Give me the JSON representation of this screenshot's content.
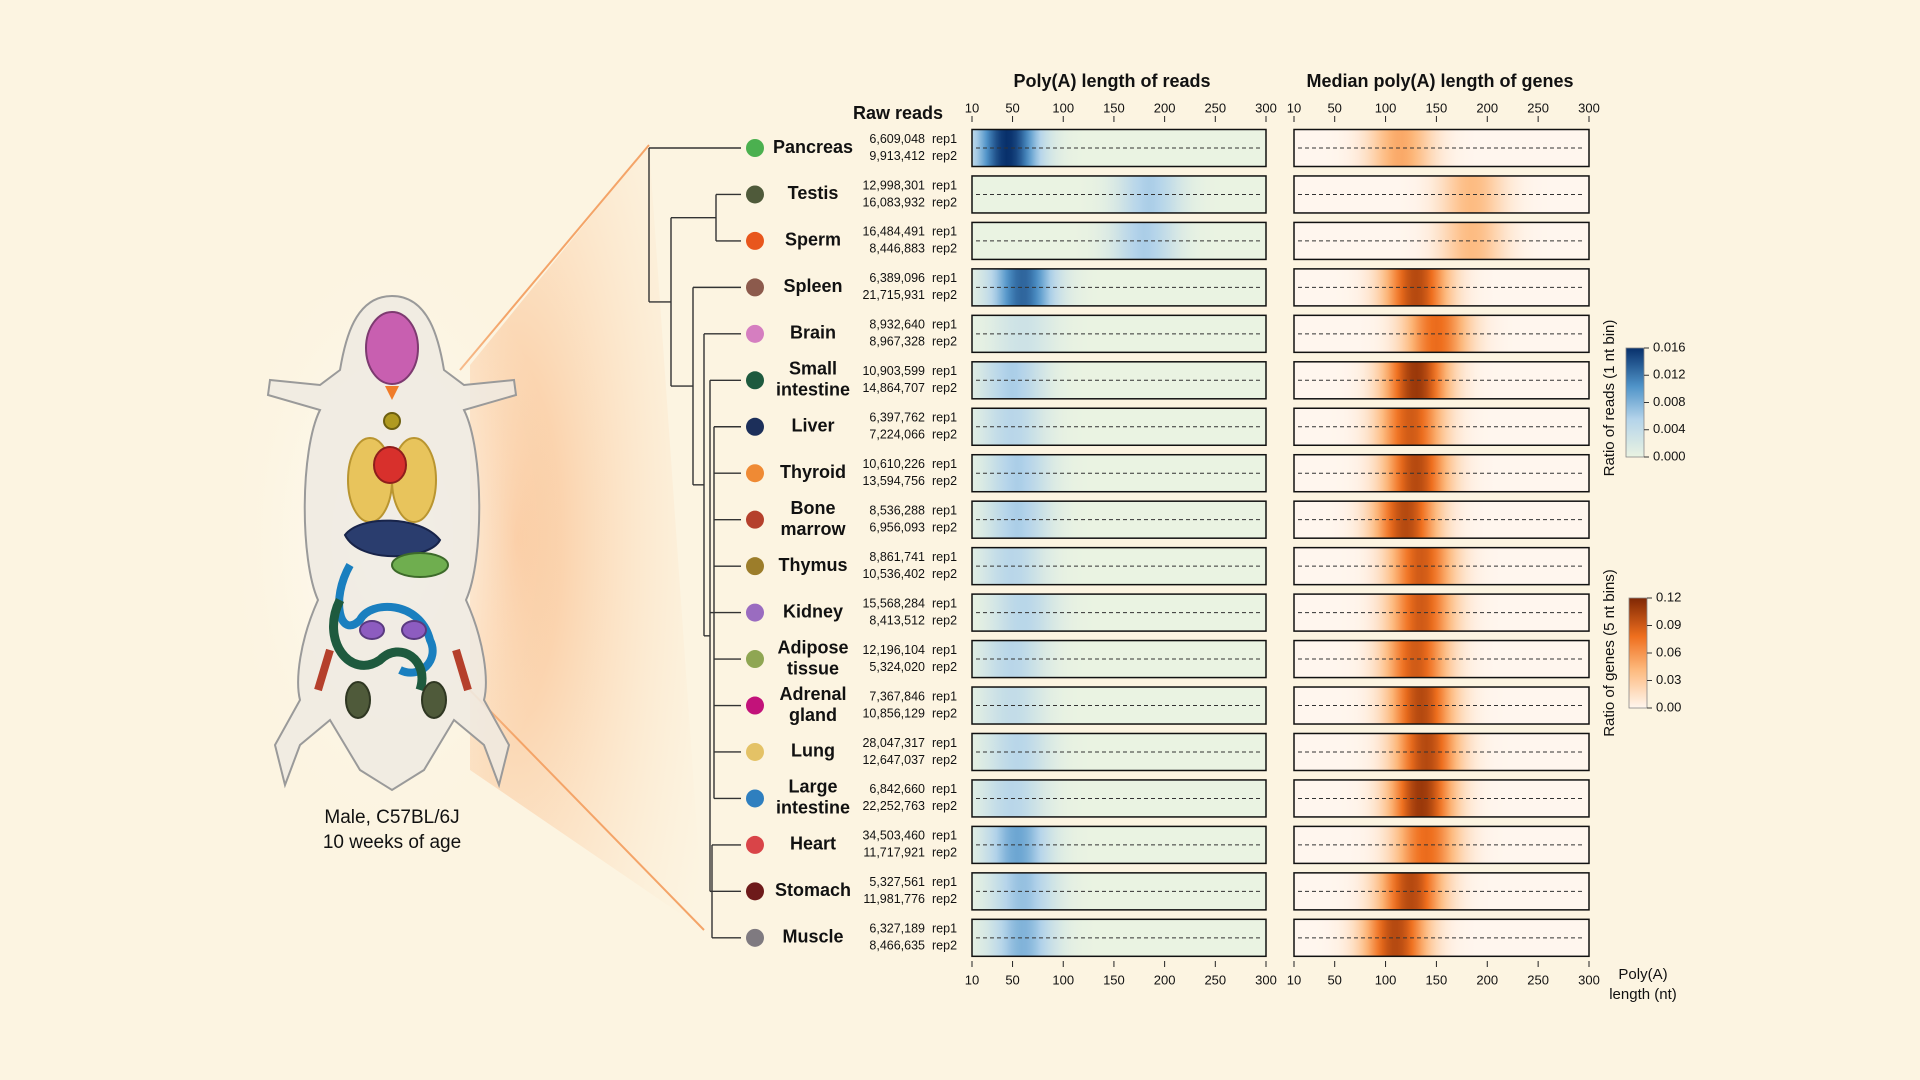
{
  "mouse": {
    "line1": "Male, C57BL/6J",
    "line2": "10 weeks of age"
  },
  "raw_reads_header": "Raw reads",
  "panel_reads": {
    "title": "Poly(A) length of reads",
    "xlim": [
      10,
      300
    ],
    "xticks": [
      10,
      50,
      100,
      150,
      200,
      250,
      300
    ]
  },
  "panel_genes": {
    "title": "Median poly(A) length of genes",
    "xlim": [
      10,
      300
    ],
    "xticks": [
      10,
      50,
      100,
      150,
      200,
      250,
      300
    ]
  },
  "x_axis_label": [
    "Poly(A)",
    "length (nt)"
  ],
  "colorbar_reads": {
    "label": "Ratio of reads (1 nt bin)",
    "lim": [
      0,
      0.016
    ],
    "ticks": [
      {
        "value": 0,
        "label": "0.000"
      },
      0.004,
      0.008,
      0.012,
      0.016
    ]
  },
  "colorbar_genes": {
    "label": "Ratio of genes (5 nt bins)",
    "lim": [
      0,
      0.12
    ],
    "ticks": [
      {
        "value": 0,
        "label": "0.00"
      },
      0.03,
      0.06,
      0.09,
      0.12
    ]
  },
  "tissues": [
    {
      "name": [
        "Pancreas"
      ],
      "color": "#4bb04f",
      "reads": [
        {
          "count": "6,609,048",
          "rep": "rep1"
        },
        {
          "count": "9,913,412",
          "rep": "rep2"
        }
      ],
      "reads_peak": 45,
      "reads_level": 0.016,
      "genes_peak": 115,
      "genes_level": 0.05
    },
    {
      "name": [
        "Testis"
      ],
      "color": "#4f5a3a",
      "reads": [
        {
          "count": "12,998,301",
          "rep": "rep1"
        },
        {
          "count": "16,083,932",
          "rep": "rep2"
        }
      ],
      "reads_peak": 185,
      "reads_level": 0.006,
      "genes_peak": 185,
      "genes_level": 0.04
    },
    {
      "name": [
        "Sperm"
      ],
      "color": "#e8561c",
      "reads": [
        {
          "count": "16,484,491",
          "rep": "rep1"
        },
        {
          "count": "8,446,883",
          "rep": "rep2"
        }
      ],
      "reads_peak": 180,
      "reads_level": 0.006,
      "genes_peak": 185,
      "genes_level": 0.04
    },
    {
      "name": [
        "Spleen"
      ],
      "color": "#8c5a4c",
      "reads": [
        {
          "count": "6,389,096",
          "rep": "rep1"
        },
        {
          "count": "21,715,931",
          "rep": "rep2"
        }
      ],
      "reads_peak": 60,
      "reads_level": 0.013,
      "genes_peak": 130,
      "genes_level": 0.1
    },
    {
      "name": [
        "Brain"
      ],
      "color": "#d57ec0",
      "reads": [
        {
          "count": "8,932,640",
          "rep": "rep1"
        },
        {
          "count": "8,967,328",
          "rep": "rep2"
        }
      ],
      "reads_peak": 60,
      "reads_level": 0.003,
      "genes_peak": 150,
      "genes_level": 0.08
    },
    {
      "name": [
        "Small",
        "intestine"
      ],
      "color": "#1e5a3e",
      "reads": [
        {
          "count": "10,903,599",
          "rep": "rep1"
        },
        {
          "count": "14,864,707",
          "rep": "rep2"
        }
      ],
      "reads_peak": 50,
      "reads_level": 0.006,
      "genes_peak": 130,
      "genes_level": 0.11
    },
    {
      "name": [
        "Liver"
      ],
      "color": "#1c2f5a",
      "reads": [
        {
          "count": "6,397,762",
          "rep": "rep1"
        },
        {
          "count": "7,224,066",
          "rep": "rep2"
        }
      ],
      "reads_peak": 50,
      "reads_level": 0.005,
      "genes_peak": 125,
      "genes_level": 0.09
    },
    {
      "name": [
        "Thyroid"
      ],
      "color": "#ef8a34",
      "reads": [
        {
          "count": "10,610,226",
          "rep": "rep1"
        },
        {
          "count": "13,594,756",
          "rep": "rep2"
        }
      ],
      "reads_peak": 55,
      "reads_level": 0.006,
      "genes_peak": 130,
      "genes_level": 0.1
    },
    {
      "name": [
        "Bone",
        "marrow"
      ],
      "color": "#b5402c",
      "reads": [
        {
          "count": "8,536,288",
          "rep": "rep1"
        },
        {
          "count": "6,956,093",
          "rep": "rep2"
        }
      ],
      "reads_peak": 55,
      "reads_level": 0.006,
      "genes_peak": 120,
      "genes_level": 0.1
    },
    {
      "name": [
        "Thymus"
      ],
      "color": "#9c7d2a",
      "reads": [
        {
          "count": "8,861,741",
          "rep": "rep1"
        },
        {
          "count": "10,536,402",
          "rep": "rep2"
        }
      ],
      "reads_peak": 50,
      "reads_level": 0.005,
      "genes_peak": 135,
      "genes_level": 0.09
    },
    {
      "name": [
        "Kidney"
      ],
      "color": "#9a6cc0",
      "reads": [
        {
          "count": "15,568,284",
          "rep": "rep1"
        },
        {
          "count": "8,413,512",
          "rep": "rep2"
        }
      ],
      "reads_peak": 60,
      "reads_level": 0.005,
      "genes_peak": 135,
      "genes_level": 0.09
    },
    {
      "name": [
        "Adipose",
        "tissue"
      ],
      "color": "#8fa653",
      "reads": [
        {
          "count": "12,196,104",
          "rep": "rep1"
        },
        {
          "count": "5,324,020",
          "rep": "rep2"
        }
      ],
      "reads_peak": 50,
      "reads_level": 0.005,
      "genes_peak": 130,
      "genes_level": 0.09
    },
    {
      "name": [
        "Adrenal",
        "gland"
      ],
      "color": "#c2127a",
      "reads": [
        {
          "count": "7,367,846",
          "rep": "rep1"
        },
        {
          "count": "10,856,129",
          "rep": "rep2"
        }
      ],
      "reads_peak": 50,
      "reads_level": 0.004,
      "genes_peak": 135,
      "genes_level": 0.1
    },
    {
      "name": [
        "Lung"
      ],
      "color": "#e4c266",
      "reads": [
        {
          "count": "28,047,317",
          "rep": "rep1"
        },
        {
          "count": "12,647,037",
          "rep": "rep2"
        }
      ],
      "reads_peak": 55,
      "reads_level": 0.005,
      "genes_peak": 140,
      "genes_level": 0.1
    },
    {
      "name": [
        "Large",
        "intestine"
      ],
      "color": "#2f7fbf",
      "reads": [
        {
          "count": "6,842,660",
          "rep": "rep1"
        },
        {
          "count": "22,252,763",
          "rep": "rep2"
        }
      ],
      "reads_peak": 50,
      "reads_level": 0.005,
      "genes_peak": 135,
      "genes_level": 0.11
    },
    {
      "name": [
        "Heart"
      ],
      "color": "#d94448",
      "reads": [
        {
          "count": "34,503,460",
          "rep": "rep1"
        },
        {
          "count": "11,717,921",
          "rep": "rep2"
        }
      ],
      "reads_peak": 55,
      "reads_level": 0.009,
      "genes_peak": 140,
      "genes_level": 0.08
    },
    {
      "name": [
        "Stomach"
      ],
      "color": "#6e1a1a",
      "reads": [
        {
          "count": "5,327,561",
          "rep": "rep1"
        },
        {
          "count": "11,981,776",
          "rep": "rep2"
        }
      ],
      "reads_peak": 60,
      "reads_level": 0.007,
      "genes_peak": 125,
      "genes_level": 0.1
    },
    {
      "name": [
        "Muscle"
      ],
      "color": "#7f7a80",
      "reads": [
        {
          "count": "6,327,189",
          "rep": "rep1"
        },
        {
          "count": "8,466,635",
          "rep": "rep2"
        }
      ],
      "reads_peak": 60,
      "reads_level": 0.008,
      "genes_peak": 110,
      "genes_level": 0.1
    }
  ]
}
